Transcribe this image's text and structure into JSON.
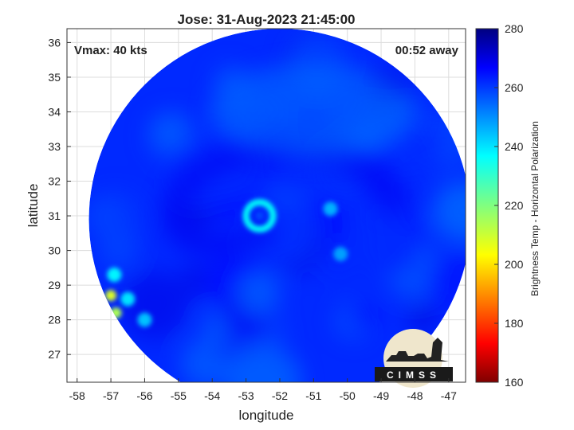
{
  "title": "Jose: 31-Aug-2023 21:45:00",
  "annotations": {
    "vmax": "Vmax: 40 kts",
    "time_away": "00:52 away"
  },
  "logo": {
    "text": "CIMSS"
  },
  "chart_data": {
    "type": "heatmap",
    "title": "Jose: 31-Aug-2023 21:45:00",
    "xlabel": "longitude",
    "ylabel": "latitude",
    "xlim": [
      -58.3,
      -46.5
    ],
    "ylim": [
      26.2,
      36.4
    ],
    "xticks": [
      -58,
      -57,
      -56,
      -55,
      -54,
      -53,
      -52,
      -51,
      -50,
      -49,
      -48,
      -47
    ],
    "yticks": [
      27,
      28,
      29,
      30,
      31,
      32,
      33,
      34,
      35,
      36
    ],
    "grid": true,
    "swath": {
      "center": [
        -52.0,
        30.9
      ],
      "radius_deg": 5.65
    },
    "colorbar": {
      "label": "Brightness Temp - Horizontal Polarization",
      "min": 160,
      "max": 280,
      "ticks": [
        160,
        180,
        200,
        220,
        240,
        260,
        280
      ],
      "colormap": "jet"
    },
    "background_value": 262,
    "features": [
      {
        "name": "eye-ring",
        "lon": -52.6,
        "lat": 31.0,
        "value": 236
      },
      {
        "name": "warm-spot-north",
        "lon": -57.0,
        "lat": 28.7,
        "value": 208
      },
      {
        "name": "warm-spot-south",
        "lon": -56.85,
        "lat": 28.2,
        "value": 214
      },
      {
        "name": "convection-sw-1",
        "lon": -56.9,
        "lat": 29.3,
        "value": 238
      },
      {
        "name": "convection-sw-2",
        "lon": -56.5,
        "lat": 28.6,
        "value": 240
      },
      {
        "name": "convection-sw-3",
        "lon": -56.0,
        "lat": 28.0,
        "value": 244
      },
      {
        "name": "convection-east",
        "lon": -50.5,
        "lat": 31.2,
        "value": 246
      },
      {
        "name": "convection-se",
        "lon": -50.2,
        "lat": 29.9,
        "value": 248
      },
      {
        "name": "cool-region-north",
        "lon": -51.0,
        "lat": 34.0,
        "value": 252
      }
    ]
  }
}
